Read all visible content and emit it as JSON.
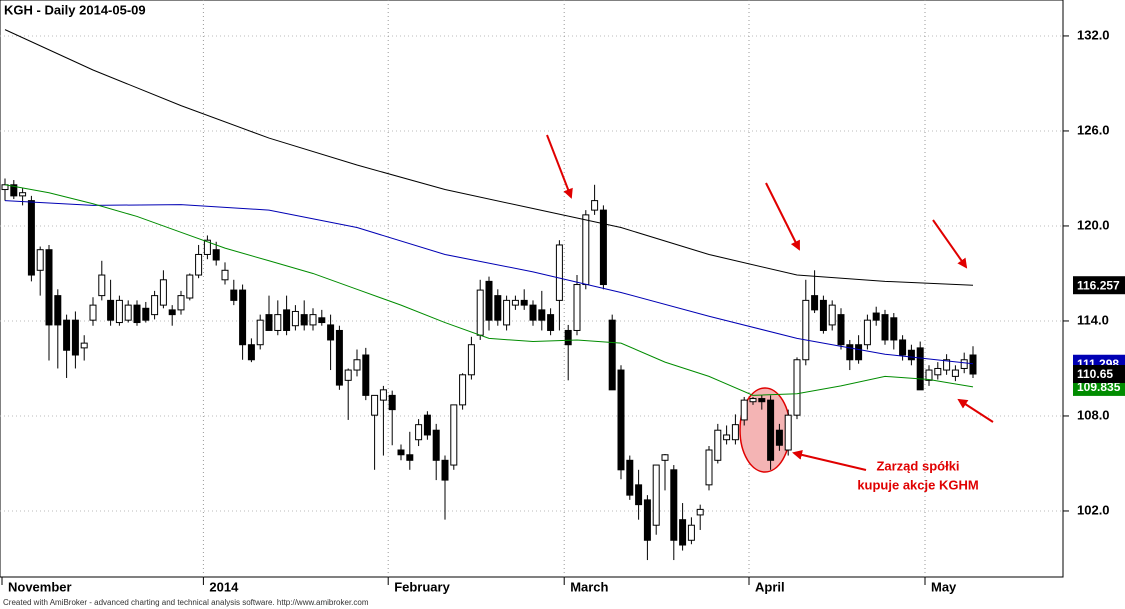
{
  "chart_data": {
    "type": "candlestick",
    "title": "KGH - Daily 2014-05-09",
    "categories": [
      "November",
      null,
      null,
      null,
      null,
      null,
      null,
      null,
      null,
      null,
      null,
      null,
      null,
      null,
      null,
      null,
      null,
      null,
      null,
      null,
      null,
      null,
      null,
      "2014",
      null,
      null,
      null,
      null,
      null,
      null,
      null,
      null,
      null,
      null,
      null,
      null,
      null,
      null,
      null,
      null,
      null,
      null,
      null,
      null,
      "February",
      null,
      null,
      null,
      null,
      null,
      null,
      null,
      null,
      null,
      null,
      null,
      null,
      null,
      null,
      null,
      null,
      null,
      null,
      null,
      "March",
      null,
      null,
      null,
      null,
      null,
      null,
      null,
      null,
      null,
      null,
      null,
      null,
      null,
      null,
      null,
      null,
      null,
      null,
      null,
      null,
      "April",
      null,
      null,
      null,
      null,
      null,
      null,
      null,
      null,
      null,
      null,
      null,
      null,
      null,
      null,
      null,
      null,
      null,
      null,
      null,
      "May",
      null,
      null,
      null,
      null,
      null
    ],
    "open": [
      122.3,
      122.6,
      121.9,
      121.6,
      117.2,
      118.5,
      115.6,
      114.05,
      114.05,
      112.3,
      114.05,
      115.6,
      115.3,
      113.9,
      114.05,
      115.0,
      114.8,
      114.4,
      115.0,
      114.7,
      114.7,
      115.45,
      116.9,
      118.2,
      118.5,
      116.6,
      115.95,
      115.95,
      112.5,
      112.5,
      114.4,
      113.4,
      114.7,
      113.7,
      114.4,
      113.75,
      114.2,
      113.75,
      113.4,
      110.25,
      110.9,
      111.85,
      108.05,
      109.0,
      109.3,
      105.85,
      105.55,
      106.5,
      108.05,
      107.1,
      105.2,
      104.9,
      108.7,
      110.6,
      113.1,
      116.5,
      115.6,
      113.75,
      115.0,
      115.3,
      115.0,
      114.7,
      114.4,
      115.3,
      113.4,
      113.4,
      116.3,
      121.0,
      121.0,
      114.05,
      110.9,
      105.2,
      103.65,
      102.7,
      101.1,
      105.2,
      104.6,
      101.45,
      100.15,
      101.75,
      103.65,
      105.2,
      106.5,
      106.5,
      107.75,
      108.9,
      109.1,
      109.0,
      107.1,
      105.85,
      108.05,
      111.55,
      115.6,
      115.3,
      113.75,
      114.4,
      112.5,
      112.5,
      112.5,
      114.5,
      114.4,
      114.2,
      112.8,
      112.15,
      112.3,
      110.25,
      110.6,
      110.9,
      110.5,
      111.0,
      111.85
    ],
    "high": [
      123.0,
      122.9,
      122.4,
      121.9,
      118.7,
      118.8,
      116.0,
      114.4,
      114.6,
      113.1,
      115.5,
      117.8,
      116.6,
      115.6,
      115.3,
      115.3,
      115.2,
      115.9,
      117.2,
      115.0,
      115.9,
      117.0,
      118.8,
      119.4,
      119.0,
      117.7,
      116.6,
      116.3,
      112.9,
      114.4,
      115.6,
      115.3,
      115.6,
      115.0,
      115.3,
      114.8,
      114.7,
      114.4,
      113.7,
      111.0,
      112.2,
      112.3,
      109.3,
      109.9,
      109.6,
      106.2,
      107.0,
      107.8,
      108.3,
      107.5,
      105.5,
      108.7,
      110.7,
      113.0,
      116.6,
      116.8,
      116.0,
      115.6,
      115.6,
      116.0,
      115.3,
      115.9,
      114.8,
      119.1,
      113.75,
      116.9,
      121.0,
      122.6,
      121.3,
      114.4,
      111.2,
      105.5,
      104.6,
      103.0,
      104.9,
      105.6,
      104.9,
      102.5,
      101.6,
      102.4,
      106.1,
      107.5,
      107.4,
      108.1,
      109.2,
      109.2,
      109.3,
      109.3,
      107.5,
      108.4,
      111.7,
      116.6,
      117.2,
      115.6,
      115.3,
      114.8,
      112.8,
      113.1,
      114.4,
      114.9,
      114.7,
      114.5,
      113.1,
      112.5,
      112.7,
      111.2,
      111.4,
      111.9,
      111.2,
      112.0,
      112.4
    ],
    "low": [
      121.6,
      121.7,
      121.3,
      116.5,
      115.6,
      111.5,
      111.0,
      110.4,
      111.0,
      111.5,
      113.7,
      115.3,
      113.7,
      113.7,
      113.9,
      113.7,
      113.9,
      114.1,
      114.8,
      113.7,
      114.4,
      115.3,
      116.7,
      117.9,
      117.5,
      116.3,
      115.0,
      111.55,
      111.4,
      112.2,
      113.4,
      113.1,
      113.1,
      113.4,
      113.4,
      113.4,
      113.7,
      110.9,
      109.65,
      107.75,
      110.5,
      109.0,
      104.6,
      105.5,
      106.15,
      105.2,
      104.6,
      106.1,
      106.5,
      103.95,
      101.45,
      104.6,
      108.4,
      110.3,
      112.8,
      113.4,
      113.7,
      113.4,
      114.7,
      114.7,
      113.7,
      113.4,
      113.1,
      113.4,
      110.25,
      113.1,
      116.0,
      120.7,
      116.0,
      109.65,
      104.0,
      102.7,
      101.45,
      98.9,
      100.5,
      103.3,
      98.9,
      99.5,
      99.9,
      100.8,
      103.3,
      105.0,
      106.2,
      106.2,
      107.4,
      108.7,
      108.4,
      104.6,
      105.8,
      105.5,
      107.8,
      111.2,
      114.5,
      113.2,
      113.4,
      112.2,
      110.9,
      111.3,
      112.2,
      113.7,
      112.5,
      112.2,
      111.5,
      111.2,
      109.65,
      109.9,
      110.3,
      110.6,
      110.2,
      110.7,
      110.4
    ],
    "close": [
      122.6,
      121.9,
      122.1,
      116.9,
      118.5,
      113.75,
      113.75,
      112.15,
      111.85,
      112.6,
      115.0,
      116.9,
      114.05,
      115.3,
      115.0,
      113.9,
      114.05,
      115.6,
      116.6,
      114.4,
      115.6,
      116.9,
      118.2,
      119.1,
      117.85,
      117.2,
      115.3,
      112.5,
      111.55,
      114.05,
      113.4,
      114.4,
      113.4,
      114.6,
      113.75,
      114.4,
      113.9,
      112.8,
      109.95,
      110.9,
      111.55,
      109.3,
      109.3,
      109.65,
      108.4,
      105.55,
      105.2,
      107.45,
      106.8,
      105.2,
      103.95,
      108.7,
      110.6,
      112.5,
      115.95,
      114.05,
      114.05,
      115.3,
      115.3,
      115.0,
      114.05,
      114.05,
      113.4,
      118.8,
      112.5,
      116.3,
      120.7,
      121.6,
      116.3,
      109.65,
      104.6,
      103.0,
      102.4,
      100.15,
      104.9,
      105.55,
      100.15,
      99.85,
      101.1,
      102.1,
      105.85,
      107.1,
      106.8,
      107.45,
      109.0,
      109.1,
      108.9,
      105.2,
      106.15,
      108.05,
      111.55,
      115.3,
      114.7,
      113.4,
      115.0,
      112.5,
      111.55,
      111.55,
      114.05,
      114.05,
      112.8,
      112.8,
      111.85,
      111.55,
      109.65,
      110.9,
      111.0,
      111.55,
      110.9,
      111.55,
      110.65
    ],
    "lines": [
      {
        "color": "#000000",
        "x": [
          0,
          10,
          20,
          30,
          40,
          50,
          60,
          70,
          80,
          90,
          100,
          110
        ],
        "values": [
          132.4,
          129.85,
          127.6,
          125.55,
          123.85,
          122.3,
          121.1,
          119.9,
          118.2,
          116.9,
          116.5,
          116.257
        ]
      },
      {
        "color": "#0000b4",
        "x": [
          0,
          10,
          20,
          30,
          40,
          50,
          60,
          70,
          80,
          90,
          100,
          110
        ],
        "values": [
          121.6,
          121.3,
          121.35,
          121.0,
          119.9,
          118.2,
          117.1,
          115.8,
          114.3,
          112.9,
          111.9,
          111.298
        ]
      },
      {
        "color": "#008c00",
        "x": [
          0,
          5,
          10,
          15,
          20,
          25,
          30,
          35,
          40,
          45,
          50,
          55,
          60,
          65,
          70,
          75,
          80,
          85,
          90,
          95,
          100,
          105,
          110
        ],
        "values": [
          122.6,
          122.1,
          121.4,
          120.6,
          119.6,
          118.6,
          117.8,
          117.0,
          116.0,
          115.0,
          113.9,
          112.9,
          112.7,
          112.8,
          112.6,
          111.4,
          110.5,
          109.3,
          109.4,
          109.9,
          110.5,
          110.3,
          109.835
        ]
      }
    ],
    "ylim": [
      97.83,
      134.27
    ],
    "yticks": [
      {
        "value": 102,
        "label": "102.0"
      },
      {
        "value": 108,
        "label": "108.0"
      },
      {
        "value": 114,
        "label": "114.0"
      },
      {
        "value": 120,
        "label": "120.0"
      },
      {
        "value": 126,
        "label": "126.0"
      },
      {
        "value": 132,
        "label": "132.0"
      }
    ],
    "grid": true,
    "annotation": [
      "Zarząd spółki",
      "kupuje akcje KGHM"
    ],
    "footer": "Created with AmiBroker - advanced charting and technical analysis software. http://www.amibroker.com"
  }
}
